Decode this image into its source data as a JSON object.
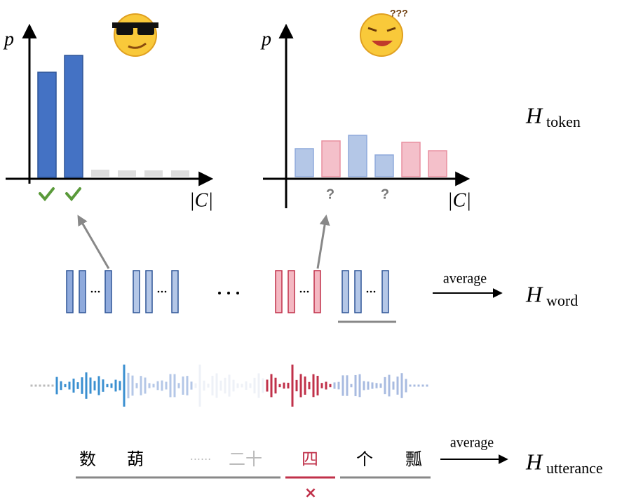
{
  "token_panel": {
    "left_axis_label": "p",
    "left_x_label": "|C|",
    "right_axis_label": "p",
    "right_x_label": "|C|",
    "uncertain_marks": [
      "?",
      "?"
    ]
  },
  "entropy_labels": {
    "token": {
      "symbol": "H",
      "subscript": "token"
    },
    "word": {
      "symbol": "H",
      "subscript": "word"
    },
    "utterance": {
      "symbol": "H",
      "subscript": "utterance"
    }
  },
  "word_row": {
    "arrow_label": "average"
  },
  "utterance_row": {
    "arrow_label": "average",
    "tokens": [
      "数",
      "葫",
      "······",
      "二十",
      "四",
      "个",
      "瓢"
    ],
    "error_mark": "×"
  }
}
